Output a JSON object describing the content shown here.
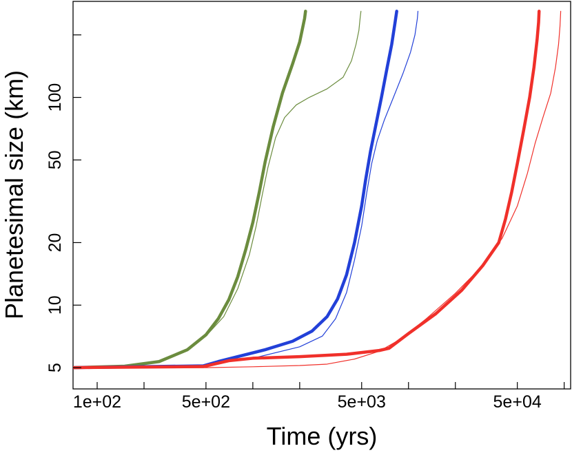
{
  "chart_data": {
    "type": "line",
    "xlabel": "Time (yrs)",
    "ylabel": "Planetesimal size (km)",
    "x_scale": "log",
    "y_scale": "log",
    "xlim": [
      70,
      110000
    ],
    "ylim": [
      3.95,
      290
    ],
    "x_ticks": [
      100,
      200,
      500,
      1000,
      2000,
      5000,
      10000,
      20000,
      50000,
      100000
    ],
    "x_tick_labels": [
      {
        "value": 100,
        "label": "1e+02"
      },
      {
        "value": 500,
        "label": "5e+02"
      },
      {
        "value": 5000,
        "label": "5e+03"
      },
      {
        "value": 50000,
        "label": "5e+04"
      }
    ],
    "y_ticks": [
      5,
      10,
      20,
      50,
      100,
      200
    ],
    "y_tick_labels": [
      {
        "value": 5,
        "label": "5"
      },
      {
        "value": 10,
        "label": "10"
      },
      {
        "value": 20,
        "label": "20"
      },
      {
        "value": 50,
        "label": "50"
      },
      {
        "value": 100,
        "label": "100"
      }
    ],
    "grid": false,
    "series": [
      {
        "color": "#6b8c3e",
        "width": 4.5,
        "points": [
          [
            70,
            5
          ],
          [
            150,
            5.08
          ],
          [
            250,
            5.35
          ],
          [
            380,
            6.1
          ],
          [
            500,
            7.2
          ],
          [
            600,
            8.6
          ],
          [
            700,
            10.6
          ],
          [
            800,
            13.7
          ],
          [
            900,
            18.5
          ],
          [
            1000,
            25
          ],
          [
            1100,
            35
          ],
          [
            1200,
            49
          ],
          [
            1350,
            72
          ],
          [
            1550,
            105
          ],
          [
            1800,
            145
          ],
          [
            2000,
            185
          ],
          [
            2150,
            240
          ],
          [
            2180,
            260
          ]
        ]
      },
      {
        "color": "#6b8c3e",
        "width": 1.2,
        "points": [
          [
            70,
            5
          ],
          [
            150,
            5.08
          ],
          [
            250,
            5.35
          ],
          [
            380,
            6.1
          ],
          [
            500,
            7.1
          ],
          [
            650,
            8.8
          ],
          [
            800,
            12
          ],
          [
            950,
            17.5
          ],
          [
            1050,
            24
          ],
          [
            1150,
            34
          ],
          [
            1250,
            46
          ],
          [
            1400,
            64
          ],
          [
            1600,
            80
          ],
          [
            1900,
            92
          ],
          [
            2300,
            100
          ],
          [
            3000,
            110
          ],
          [
            3800,
            125
          ],
          [
            4300,
            150
          ],
          [
            4600,
            180
          ],
          [
            4800,
            210
          ],
          [
            4900,
            245
          ],
          [
            4950,
            260
          ]
        ]
      },
      {
        "color": "#2240d8",
        "width": 4.5,
        "points": [
          [
            70,
            5
          ],
          [
            480,
            5.1
          ],
          [
            600,
            5.35
          ],
          [
            800,
            5.65
          ],
          [
            1200,
            6.1
          ],
          [
            1800,
            6.7
          ],
          [
            2400,
            7.5
          ],
          [
            3000,
            8.8
          ],
          [
            3500,
            10.7
          ],
          [
            4000,
            14
          ],
          [
            4500,
            20
          ],
          [
            5000,
            30
          ],
          [
            5300,
            40
          ],
          [
            5700,
            55
          ],
          [
            6200,
            75
          ],
          [
            6700,
            100
          ],
          [
            7300,
            140
          ],
          [
            7800,
            180
          ],
          [
            8200,
            230
          ],
          [
            8400,
            260
          ]
        ]
      },
      {
        "color": "#2240d8",
        "width": 1.2,
        "points": [
          [
            70,
            5
          ],
          [
            480,
            5.1
          ],
          [
            600,
            5.3
          ],
          [
            1000,
            5.55
          ],
          [
            2000,
            6.3
          ],
          [
            2800,
            7.1
          ],
          [
            3400,
            8.6
          ],
          [
            4000,
            11.5
          ],
          [
            4500,
            16.5
          ],
          [
            5000,
            24
          ],
          [
            5400,
            35
          ],
          [
            5800,
            48
          ],
          [
            6300,
            62
          ],
          [
            7000,
            78
          ],
          [
            8000,
            100
          ],
          [
            9200,
            130
          ],
          [
            10300,
            165
          ],
          [
            11000,
            200
          ],
          [
            11400,
            240
          ],
          [
            11500,
            260
          ]
        ]
      },
      {
        "color": "#f0302a",
        "width": 4.5,
        "points": [
          [
            70,
            5
          ],
          [
            480,
            5.06
          ],
          [
            700,
            5.4
          ],
          [
            1000,
            5.55
          ],
          [
            2000,
            5.65
          ],
          [
            4000,
            5.8
          ],
          [
            6500,
            6.05
          ],
          [
            7500,
            6.2
          ],
          [
            10000,
            7.3
          ],
          [
            15000,
            9.1
          ],
          [
            22000,
            11.8
          ],
          [
            30000,
            15.5
          ],
          [
            38000,
            20
          ],
          [
            42000,
            26
          ],
          [
            46000,
            35
          ],
          [
            50000,
            48
          ],
          [
            55000,
            70
          ],
          [
            60000,
            100
          ],
          [
            64000,
            140
          ],
          [
            67000,
            190
          ],
          [
            68500,
            230
          ],
          [
            69000,
            260
          ]
        ]
      },
      {
        "color": "#f0302a",
        "width": 1.2,
        "points": [
          [
            70,
            5
          ],
          [
            500,
            5
          ],
          [
            1000,
            5.05
          ],
          [
            2000,
            5.12
          ],
          [
            3000,
            5.2
          ],
          [
            4500,
            5.5
          ],
          [
            6500,
            6
          ],
          [
            9000,
            6.9
          ],
          [
            13000,
            8.6
          ],
          [
            20000,
            11.4
          ],
          [
            30000,
            15.5
          ],
          [
            40000,
            21
          ],
          [
            50000,
            30
          ],
          [
            58000,
            43
          ],
          [
            65000,
            60
          ],
          [
            73000,
            80
          ],
          [
            82000,
            105
          ],
          [
            88000,
            140
          ],
          [
            92000,
            180
          ],
          [
            94000,
            220
          ],
          [
            95000,
            260
          ]
        ]
      }
    ]
  }
}
